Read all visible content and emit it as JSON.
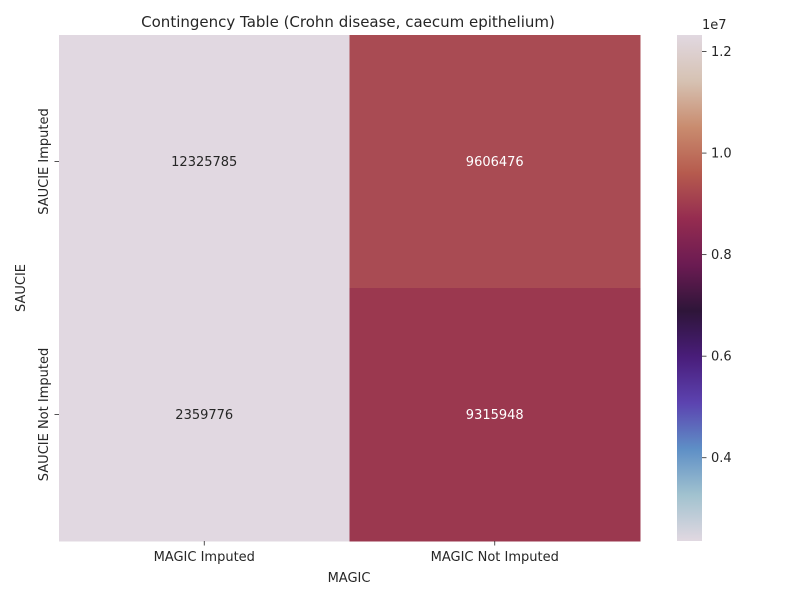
{
  "chart_data": {
    "type": "heatmap",
    "title": "Contingency Table (Crohn disease, caecum epithelium)",
    "xlabel": "MAGIC",
    "ylabel": "SAUCIE",
    "x_categories": [
      "MAGIC Imputed",
      "MAGIC Not Imputed"
    ],
    "y_categories": [
      "SAUCIE Imputed",
      "SAUCIE Not Imputed"
    ],
    "values": [
      [
        12325785,
        9606476
      ],
      [
        2359776,
        9315948
      ]
    ],
    "annotations": [
      [
        "12325785",
        "9606476"
      ],
      [
        "2359776",
        "9315948"
      ]
    ],
    "cell_colors": [
      [
        "#e1d8e1",
        "#a94b53"
      ],
      [
        "#e1d8e1",
        "#9b384f"
      ]
    ],
    "annotation_colors": [
      [
        "#262626",
        "#ffffff"
      ],
      [
        "#262626",
        "#ffffff"
      ]
    ],
    "colorbar": {
      "colormap": "twilight",
      "vmin": 2359776,
      "vmax": 12325785,
      "ticks": [
        0.4,
        0.6,
        0.8,
        1.0,
        1.2
      ],
      "tick_labels": [
        "0.4",
        "0.6",
        "0.8",
        "1.0",
        "1.2"
      ],
      "scale_label": "1e7",
      "tick_multiplier": 10000000,
      "gradient_colors": [
        "#e1d8e1",
        "#a1c2cf",
        "#5e8fc6",
        "#5c43b0",
        "#491d7a",
        "#2e1539",
        "#6b1b52",
        "#952c50",
        "#b65b4e",
        "#c98c6f",
        "#d6c2b3",
        "#e1d8e1"
      ]
    }
  }
}
